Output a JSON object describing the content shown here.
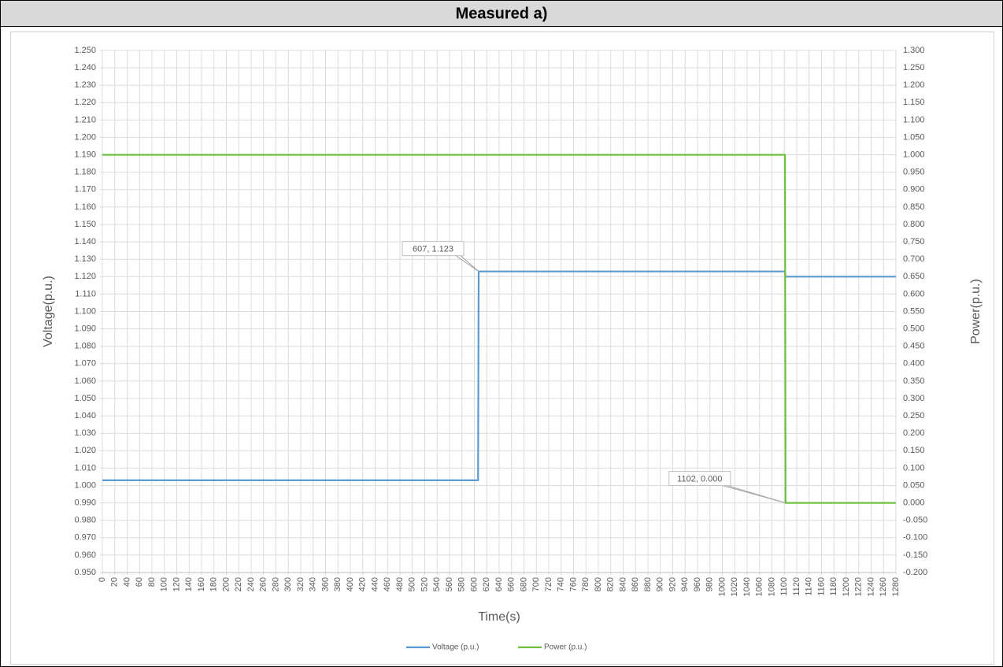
{
  "chart_data": {
    "type": "line",
    "title": "Measured a)",
    "xlabel": "Time(s)",
    "ylabel": "Voltage(p.u.)",
    "y2label": "Power(p.u.)",
    "x": [
      0,
      606,
      607,
      1101,
      1102,
      1280
    ],
    "series": [
      {
        "name": "Voltage (p.u.)",
        "color": "#5b9bd5",
        "values": [
          1.003,
          1.003,
          1.123,
          1.123,
          1.12,
          1.12
        ]
      },
      {
        "name": "Power (p.u.)",
        "color": "#70c040",
        "axis": "y2",
        "values": [
          1,
          1,
          1,
          1,
          0,
          0
        ]
      }
    ],
    "annotations": [
      {
        "text": "607, 1.123",
        "x": 607,
        "y": 1.123
      },
      {
        "text": "1102, 0.000",
        "x": 1102,
        "y": 0,
        "axis": "y2"
      }
    ],
    "xlim": [
      0,
      1280
    ],
    "xticks": [
      0,
      20,
      40,
      60,
      80,
      100,
      120,
      140,
      160,
      180,
      200,
      220,
      240,
      260,
      280,
      300,
      320,
      340,
      360,
      380,
      400,
      420,
      440,
      460,
      480,
      500,
      520,
      540,
      560,
      580,
      600,
      620,
      640,
      660,
      680,
      700,
      720,
      740,
      760,
      780,
      800,
      820,
      840,
      860,
      880,
      900,
      920,
      940,
      960,
      980,
      1000,
      1020,
      1040,
      1060,
      1080,
      1100,
      1120,
      1140,
      1160,
      1180,
      1200,
      1220,
      1240,
      1260,
      1280
    ],
    "ylim": [
      0.95,
      1.25
    ],
    "yticks": [
      {
        "value": 0.95,
        "label": "0.950"
      },
      {
        "value": 0.96,
        "label": "0.960"
      },
      {
        "value": 0.97,
        "label": "0.970"
      },
      {
        "value": 0.98,
        "label": "0.980"
      },
      {
        "value": 0.99,
        "label": "0.990"
      },
      {
        "value": 1,
        "label": "1.000"
      },
      {
        "value": 1.01,
        "label": "1.010"
      },
      {
        "value": 1.02,
        "label": "1.020"
      },
      {
        "value": 1.03,
        "label": "1.030"
      },
      {
        "value": 1.04,
        "label": "1.040"
      },
      {
        "value": 1.05,
        "label": "1.050"
      },
      {
        "value": 1.06,
        "label": "1.060"
      },
      {
        "value": 1.07,
        "label": "1.070"
      },
      {
        "value": 1.08,
        "label": "1.080"
      },
      {
        "value": 1.09,
        "label": "1.090"
      },
      {
        "value": 1.1,
        "label": "1.100"
      },
      {
        "value": 1.11,
        "label": "1.110"
      },
      {
        "value": 1.12,
        "label": "1.120"
      },
      {
        "value": 1.13,
        "label": "1.130"
      },
      {
        "value": 1.14,
        "label": "1.140"
      },
      {
        "value": 1.15,
        "label": "1.150"
      },
      {
        "value": 1.16,
        "label": "1.160"
      },
      {
        "value": 1.17,
        "label": "1.170"
      },
      {
        "value": 1.18,
        "label": "1.180"
      },
      {
        "value": 1.19,
        "label": "1.190"
      },
      {
        "value": 1.2,
        "label": "1.200"
      },
      {
        "value": 1.21,
        "label": "1.210"
      },
      {
        "value": 1.22,
        "label": "1.220"
      },
      {
        "value": 1.23,
        "label": "1.230"
      },
      {
        "value": 1.24,
        "label": "1.240"
      },
      {
        "value": 1.25,
        "label": "1.250"
      }
    ],
    "y2lim": [
      -0.2,
      1.3
    ],
    "y2ticks": [
      {
        "value": -0.2,
        "label": "-0.200"
      },
      {
        "value": -0.15,
        "label": "-0.150"
      },
      {
        "value": -0.1,
        "label": "-0.100"
      },
      {
        "value": -0.05,
        "label": "-0.050"
      },
      {
        "value": 0,
        "label": "0.000"
      },
      {
        "value": 0.05,
        "label": "0.050"
      },
      {
        "value": 0.1,
        "label": "0.100"
      },
      {
        "value": 0.15,
        "label": "0.150"
      },
      {
        "value": 0.2,
        "label": "0.200"
      },
      {
        "value": 0.25,
        "label": "0.250"
      },
      {
        "value": 0.3,
        "label": "0.300"
      },
      {
        "value": 0.35,
        "label": "0.350"
      },
      {
        "value": 0.4,
        "label": "0.400"
      },
      {
        "value": 0.45,
        "label": "0.450"
      },
      {
        "value": 0.5,
        "label": "0.500"
      },
      {
        "value": 0.55,
        "label": "0.550"
      },
      {
        "value": 0.6,
        "label": "0.600"
      },
      {
        "value": 0.65,
        "label": "0.650"
      },
      {
        "value": 0.7,
        "label": "0.700"
      },
      {
        "value": 0.75,
        "label": "0.750"
      },
      {
        "value": 0.8,
        "label": "0.800"
      },
      {
        "value": 0.85,
        "label": "0.850"
      },
      {
        "value": 0.9,
        "label": "0.900"
      },
      {
        "value": 0.95,
        "label": "0.950"
      },
      {
        "value": 1,
        "label": "1.000"
      },
      {
        "value": 1.05,
        "label": "1.050"
      },
      {
        "value": 1.1,
        "label": "1.100"
      },
      {
        "value": 1.15,
        "label": "1.150"
      },
      {
        "value": 1.2,
        "label": "1.200"
      },
      {
        "value": 1.25,
        "label": "1.250"
      },
      {
        "value": 1.3,
        "label": "1.300"
      }
    ],
    "grid": true,
    "legend": "bottom"
  }
}
